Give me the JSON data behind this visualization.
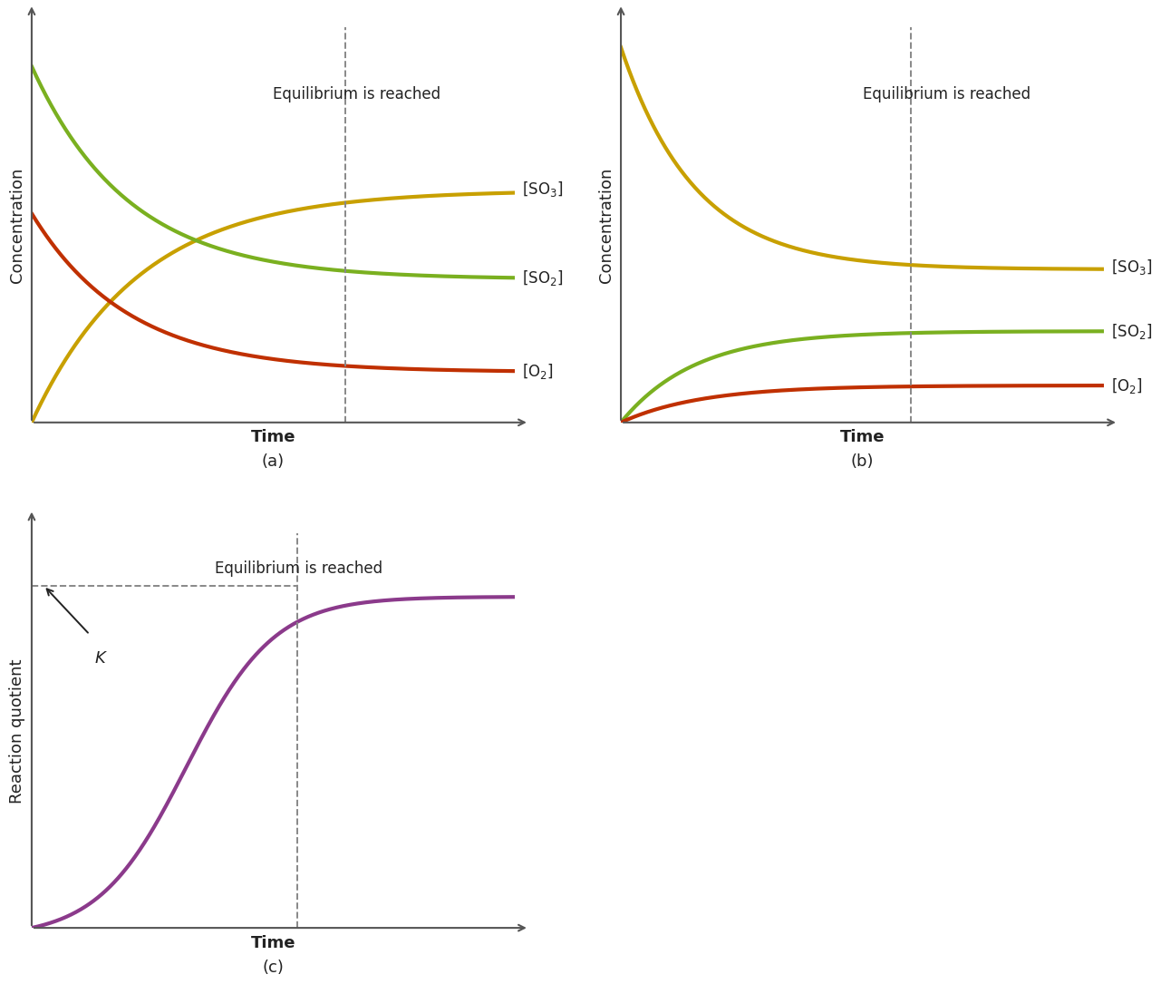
{
  "background_color": "#ffffff",
  "so3_color": "#c8a000",
  "so2_color": "#7ab020",
  "o2_color": "#c03000",
  "purple_color": "#8b3a8b",
  "dashed_color": "#888888",
  "axis_color": "#555555",
  "text_color": "#222222",
  "panel_a": {
    "label": "(a)",
    "xlabel": "Time",
    "ylabel": "Concentration",
    "eq_text": "Equilibrium is reached",
    "so3_label": "[SO$_3$]",
    "so2_label": "[SO$_2$]",
    "o2_label": "[O$_2$]"
  },
  "panel_b": {
    "label": "(b)",
    "xlabel": "Time",
    "ylabel": "Concentration",
    "eq_text": "Equilibrium is reached",
    "so3_label": "[SO$_3$]",
    "so2_label": "[SO$_2$]",
    "o2_label": "[O$_2$]"
  },
  "panel_c": {
    "label": "(c)",
    "xlabel": "Time",
    "ylabel": "Reaction quotient",
    "eq_text": "Equilibrium is reached",
    "k_label": "K"
  }
}
